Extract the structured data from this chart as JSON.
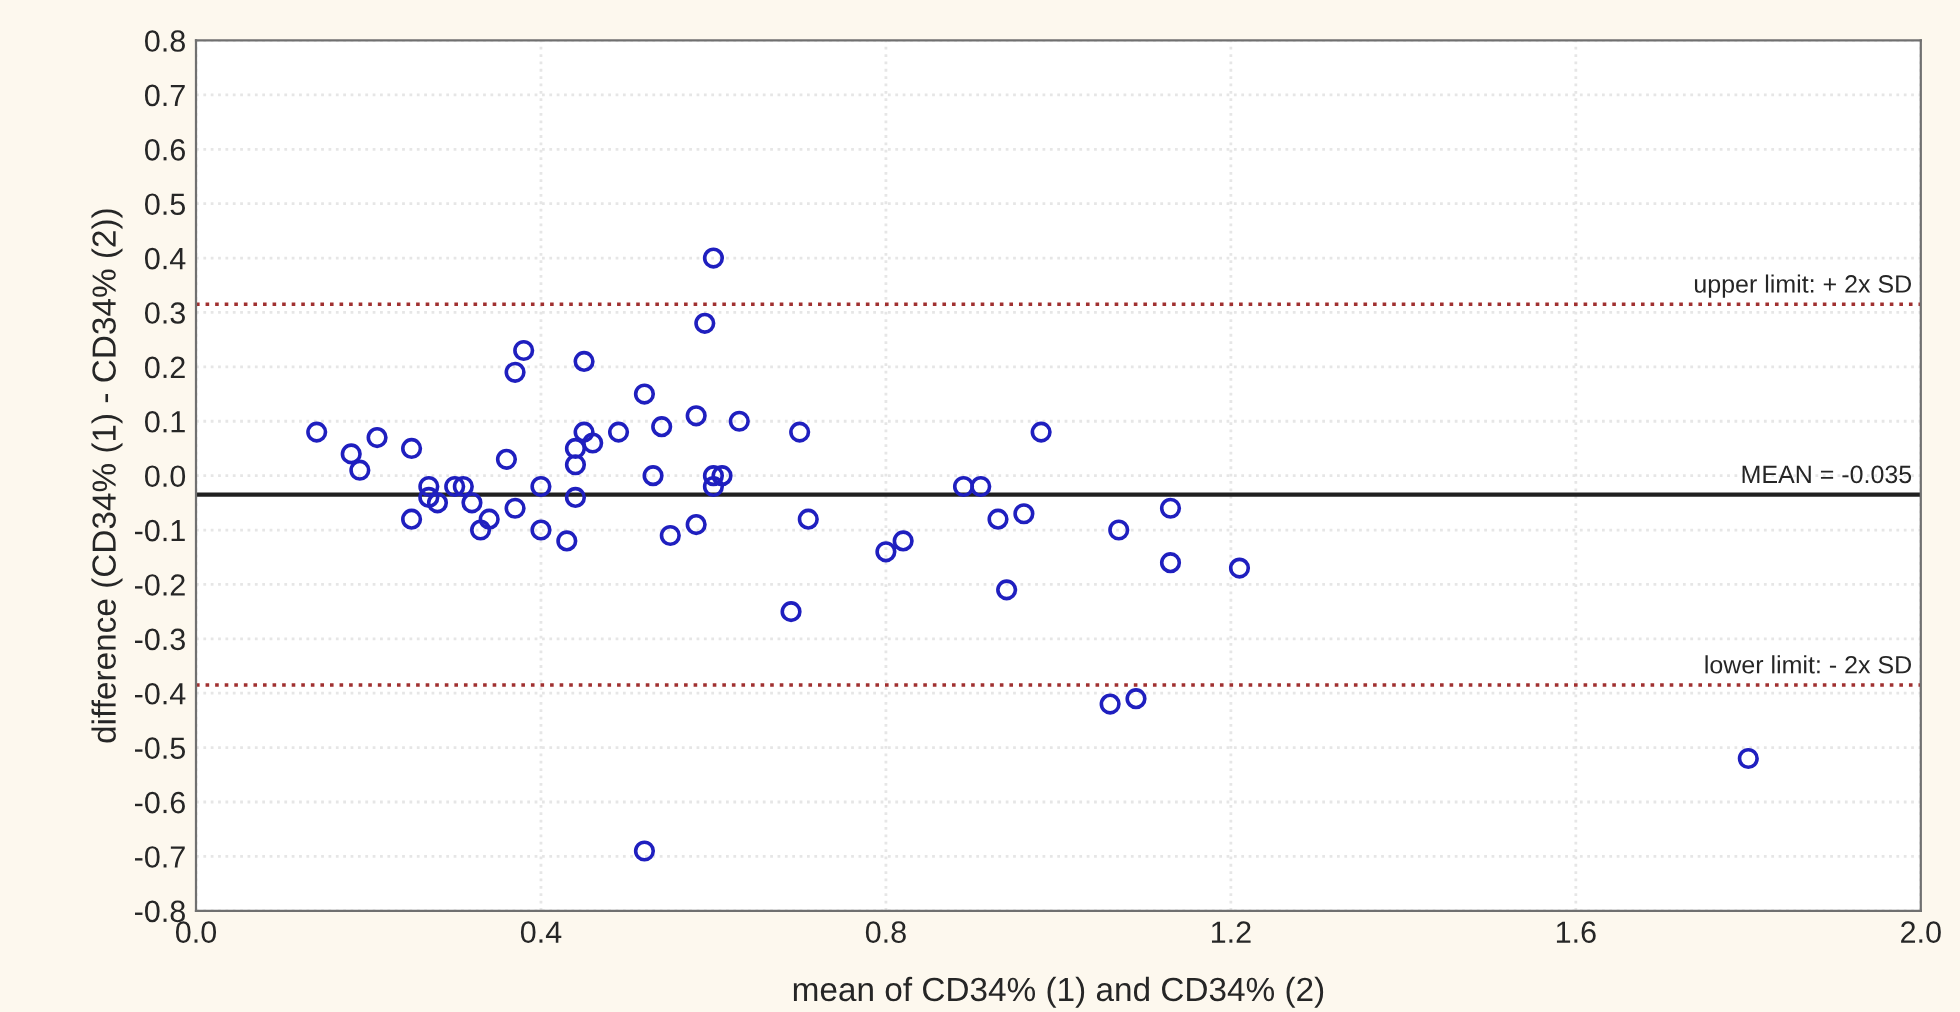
{
  "chart_data": {
    "type": "scatter",
    "xlabel": "mean of CD34% (1) and CD34% (2)",
    "ylabel": "difference (CD34% (1) - CD34% (2))",
    "x": [
      0.14,
      0.18,
      0.19,
      0.21,
      0.25,
      0.25,
      0.27,
      0.27,
      0.28,
      0.3,
      0.31,
      0.32,
      0.33,
      0.34,
      0.36,
      0.37,
      0.37,
      0.38,
      0.4,
      0.4,
      0.43,
      0.44,
      0.44,
      0.44,
      0.45,
      0.45,
      0.46,
      0.49,
      0.52,
      0.53,
      0.54,
      0.55,
      0.58,
      0.58,
      0.59,
      0.6,
      0.6,
      0.6,
      0.61,
      0.63,
      0.52,
      0.69,
      0.7,
      0.71,
      0.8,
      0.82,
      0.89,
      0.91,
      0.93,
      0.94,
      0.96,
      0.98,
      1.06,
      1.07,
      1.09,
      1.13,
      1.13,
      1.21,
      1.8
    ],
    "series": [
      {
        "color": "#1f1fbf",
        "values": [
          0.08,
          0.04,
          0.01,
          0.07,
          0.05,
          -0.08,
          -0.02,
          -0.04,
          -0.05,
          -0.02,
          -0.02,
          -0.05,
          -0.1,
          -0.08,
          0.03,
          -0.06,
          0.19,
          0.23,
          -0.02,
          -0.1,
          -0.12,
          0.02,
          -0.04,
          0.05,
          0.21,
          0.08,
          0.06,
          0.08,
          0.15,
          0.0,
          0.09,
          -0.11,
          0.11,
          -0.09,
          0.28,
          0.4,
          0.0,
          -0.02,
          0.0,
          0.1,
          -0.69,
          -0.25,
          0.08,
          -0.08,
          -0.14,
          -0.12,
          -0.02,
          -0.02,
          -0.08,
          -0.21,
          -0.07,
          0.08,
          -0.42,
          -0.1,
          -0.41,
          -0.06,
          -0.16,
          -0.17,
          -0.52
        ]
      }
    ],
    "marker": "circle",
    "grid": true,
    "xlim": [
      0,
      2.0
    ],
    "xticks": [
      {
        "value": 0,
        "label": "0.0"
      },
      {
        "value": 0.4,
        "label": "0.4"
      },
      {
        "value": 0.8,
        "label": "0.8"
      },
      {
        "value": 1.2,
        "label": "1.2"
      },
      {
        "value": 1.6,
        "label": "1.6"
      },
      {
        "value": 2.0,
        "label": "2.0"
      }
    ],
    "ylim": [
      -0.8,
      0.8
    ],
    "yticks": [
      {
        "value": -0.8,
        "label": "-0.8"
      },
      {
        "value": -0.7,
        "label": "-0.7"
      },
      {
        "value": -0.6,
        "label": "-0.6"
      },
      {
        "value": -0.5,
        "label": "-0.5"
      },
      {
        "value": -0.4,
        "label": "-0.4"
      },
      {
        "value": -0.3,
        "label": "-0.3"
      },
      {
        "value": -0.2,
        "label": "-0.2"
      },
      {
        "value": -0.1,
        "label": "-0.1"
      },
      {
        "value": 0,
        "label": "0.0"
      },
      {
        "value": 0.1,
        "label": "0.1"
      },
      {
        "value": 0.2,
        "label": "0.2"
      },
      {
        "value": 0.3,
        "label": "0.3"
      },
      {
        "value": 0.4,
        "label": "0.4"
      },
      {
        "value": 0.5,
        "label": "0.5"
      },
      {
        "value": 0.6,
        "label": "0.6"
      },
      {
        "value": 0.7,
        "label": "0.7"
      },
      {
        "value": 0.8,
        "label": "0.8"
      }
    ],
    "ref_lines": [
      {
        "axis": "y",
        "value": 0.315,
        "label": "upper limit: + 2x SD",
        "color": "#a03030",
        "line_style": "dotted"
      },
      {
        "axis": "y",
        "value": -0.035,
        "label": "MEAN = -0.035",
        "color": "#202020",
        "line_style": "solid"
      },
      {
        "axis": "y",
        "value": -0.385,
        "label": "lower limit: - 2x SD",
        "color": "#a03030",
        "line_style": "dotted"
      }
    ]
  }
}
